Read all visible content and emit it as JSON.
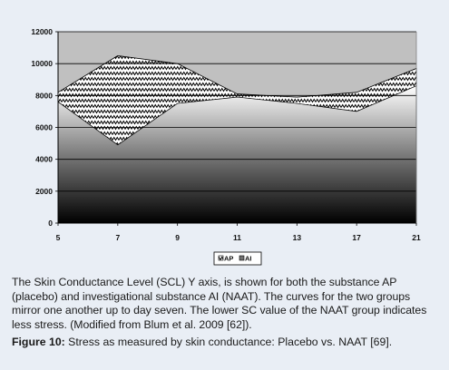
{
  "chart_data": {
    "type": "area",
    "x": [
      5,
      7,
      9,
      11,
      13,
      17,
      21
    ],
    "series": [
      {
        "name": "AP",
        "values": [
          8200,
          10500,
          10000,
          8100,
          7900,
          8200,
          9700
        ],
        "fill": "zigzag-pattern"
      },
      {
        "name": "AI",
        "values": [
          7600,
          4900,
          7500,
          7900,
          7500,
          7000,
          8600
        ],
        "fill": "vertical-gradient-gray"
      }
    ],
    "ylim": [
      0,
      12000
    ],
    "yticks": [
      "0",
      "2000",
      "4000",
      "6000",
      "8000",
      "10000",
      "12000"
    ],
    "xticks": [
      "5",
      "7",
      "9",
      "11",
      "13",
      "17",
      "21"
    ],
    "grid": "horizontal",
    "legend": "bottom",
    "colors": {
      "plot_bg": "#c0c0c0",
      "page_bg": "#e9eef5",
      "gradient_top": "#ffffff",
      "gradient_bottom": "#000000"
    }
  },
  "caption": {
    "text": "The Skin Conductance Level (SCL) Y axis, is shown for both the substance AP (placebo) and investigational substance AI (NAAT). The curves for the two groups mirror one another up to day seven. The lower SC value of the NAAT group indicates less stress. (Modified from Blum et al. 2009 [62]).",
    "figure_label": "Figure 10:",
    "figure_title": " Stress as measured by skin conductance: Placebo vs. NAAT [69]."
  }
}
